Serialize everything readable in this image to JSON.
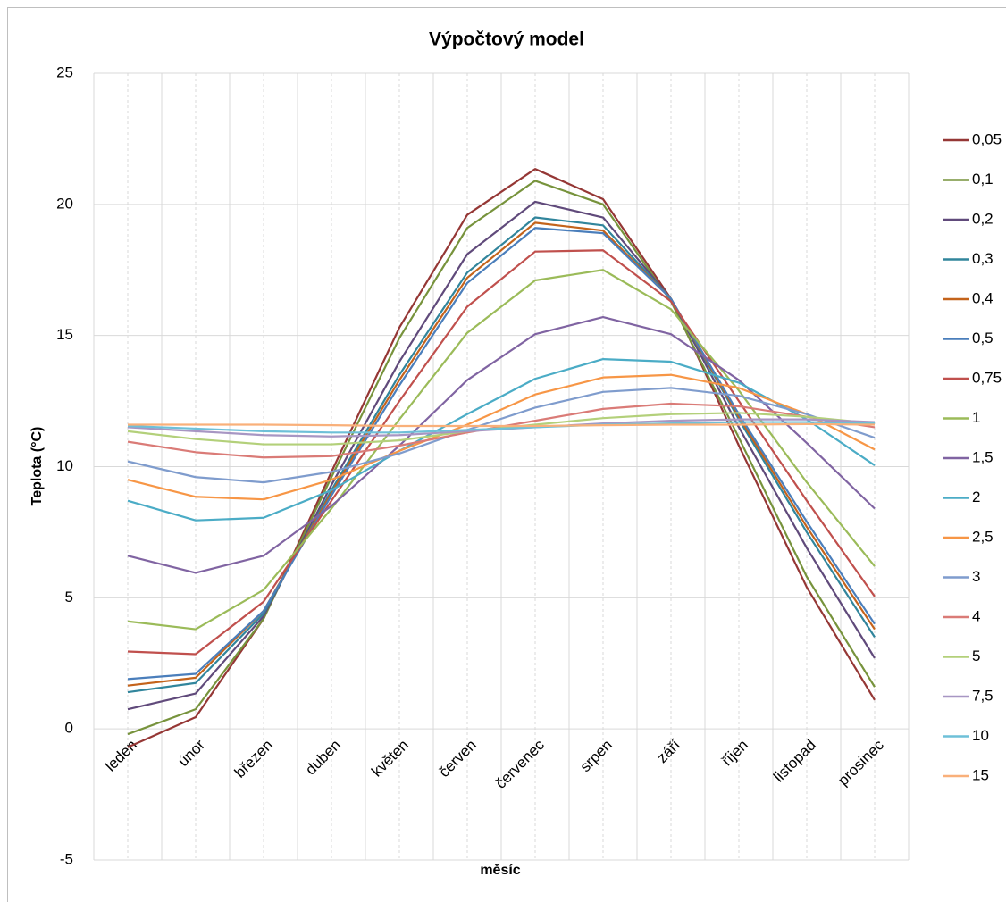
{
  "chart_data": {
    "type": "line",
    "title": "Výpočtový model",
    "x_label": "měsíc",
    "y_label": "Teplota (°C)",
    "categories": [
      "leden",
      "únor",
      "březen",
      "duben",
      "květen",
      "červen",
      "červenec",
      "srpen",
      "září",
      "říjen",
      "listopad",
      "prosinec"
    ],
    "ylim": [
      -5,
      25
    ],
    "yticks": [
      -5,
      0,
      5,
      10,
      15,
      20,
      25
    ],
    "grid": true,
    "legend": "right",
    "series": [
      {
        "name": "0,05",
        "color": "#953735",
        "values": [
          -0.7,
          0.45,
          4.2,
          9.8,
          15.3,
          19.6,
          21.35,
          20.2,
          16.4,
          10.8,
          5.4,
          1.1
        ]
      },
      {
        "name": "0,1",
        "color": "#77933c",
        "values": [
          -0.2,
          0.75,
          4.2,
          9.6,
          14.9,
          19.1,
          20.9,
          20.0,
          16.3,
          11.1,
          5.8,
          1.6
        ]
      },
      {
        "name": "0,2",
        "color": "#604a7b",
        "values": [
          0.75,
          1.35,
          4.3,
          9.3,
          14.0,
          18.1,
          20.1,
          19.5,
          16.4,
          11.5,
          6.9,
          2.7
        ]
      },
      {
        "name": "0,3",
        "color": "#31859c",
        "values": [
          1.4,
          1.75,
          4.4,
          9.1,
          13.5,
          17.4,
          19.5,
          19.2,
          16.4,
          11.8,
          7.5,
          3.5
        ]
      },
      {
        "name": "0,4",
        "color": "#c4631b",
        "values": [
          1.65,
          1.95,
          4.5,
          9.0,
          13.3,
          17.2,
          19.3,
          19.0,
          16.4,
          11.9,
          7.7,
          3.8
        ]
      },
      {
        "name": "0,5",
        "color": "#4a7ebb",
        "values": [
          1.9,
          2.1,
          4.5,
          8.9,
          13.1,
          17.0,
          19.1,
          18.9,
          16.4,
          12.0,
          7.9,
          4.0
        ]
      },
      {
        "name": "0,75",
        "color": "#c0504d",
        "values": [
          2.95,
          2.85,
          4.85,
          8.7,
          12.5,
          16.1,
          18.2,
          18.25,
          16.3,
          12.5,
          8.7,
          5.05
        ]
      },
      {
        "name": "1",
        "color": "#9bbb59",
        "values": [
          4.1,
          3.8,
          5.3,
          8.4,
          11.8,
          15.1,
          17.1,
          17.5,
          16.0,
          12.9,
          9.4,
          6.2
        ]
      },
      {
        "name": "1,5",
        "color": "#8064a2",
        "values": [
          6.6,
          5.95,
          6.6,
          8.5,
          10.8,
          13.3,
          15.05,
          15.7,
          15.05,
          13.3,
          10.9,
          8.4
        ]
      },
      {
        "name": "2",
        "color": "#4bacc6",
        "values": [
          8.7,
          7.95,
          8.05,
          9.1,
          10.6,
          12.0,
          13.35,
          14.1,
          14.0,
          13.2,
          11.8,
          10.05
        ]
      },
      {
        "name": "2,5",
        "color": "#f79646",
        "values": [
          9.5,
          8.85,
          8.75,
          9.5,
          10.6,
          11.6,
          12.75,
          13.4,
          13.5,
          13.0,
          12.0,
          10.65
        ]
      },
      {
        "name": "3",
        "color": "#7f9ccd",
        "values": [
          10.2,
          9.6,
          9.4,
          9.8,
          10.5,
          11.4,
          12.25,
          12.85,
          13.0,
          12.7,
          12.0,
          11.1
        ]
      },
      {
        "name": "4",
        "color": "#da7b77",
        "values": [
          10.95,
          10.55,
          10.35,
          10.4,
          10.8,
          11.3,
          11.75,
          12.2,
          12.4,
          12.3,
          11.9,
          11.5
        ]
      },
      {
        "name": "5",
        "color": "#b3d07a",
        "values": [
          11.35,
          11.05,
          10.85,
          10.85,
          11.0,
          11.35,
          11.6,
          11.85,
          12.0,
          12.05,
          11.9,
          11.65
        ]
      },
      {
        "name": "7,5",
        "color": "#a796c3",
        "values": [
          11.5,
          11.35,
          11.2,
          11.15,
          11.2,
          11.35,
          11.5,
          11.65,
          11.75,
          11.8,
          11.8,
          11.7
        ]
      },
      {
        "name": "10",
        "color": "#6ec0d8",
        "values": [
          11.55,
          11.45,
          11.35,
          11.3,
          11.3,
          11.4,
          11.5,
          11.6,
          11.65,
          11.7,
          11.7,
          11.65
        ]
      },
      {
        "name": "15",
        "color": "#f9b07a",
        "values": [
          11.6,
          11.6,
          11.6,
          11.58,
          11.55,
          11.55,
          11.55,
          11.58,
          11.6,
          11.6,
          11.62,
          11.6
        ]
      }
    ]
  }
}
